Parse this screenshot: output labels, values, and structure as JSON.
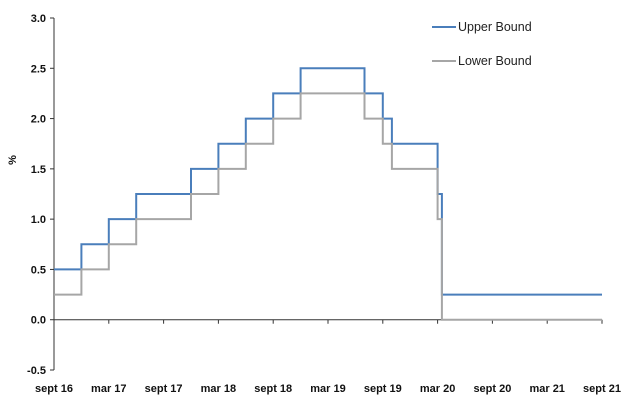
{
  "chart_data": {
    "type": "line",
    "title": "",
    "xlabel": "",
    "ylabel": "%",
    "ylim": [
      -0.5,
      3.0
    ],
    "yticks": [
      -0.5,
      0.0,
      0.5,
      1.0,
      1.5,
      2.0,
      2.5,
      3.0
    ],
    "ytick_labels": [
      "-0.5",
      "0.0",
      "0.5",
      "1.0",
      "1.5",
      "2.0",
      "2.5",
      "3.0"
    ],
    "xlim": [
      "2016-09",
      "2021-09"
    ],
    "xticks": [
      "2016-09",
      "2017-03",
      "2017-09",
      "2018-03",
      "2018-09",
      "2019-03",
      "2019-09",
      "2020-03",
      "2020-09",
      "2021-03",
      "2021-09"
    ],
    "xtick_labels": [
      "sept 16",
      "mar 17",
      "sept 17",
      "mar 18",
      "sept 18",
      "mar 19",
      "sept 19",
      "mar 20",
      "sept 20",
      "mar 21",
      "sept 21"
    ],
    "grid": false,
    "legend_position": "top-right",
    "step": true,
    "series": [
      {
        "name": "Upper Bound",
        "color": "#4a7ebb",
        "points": [
          [
            "2016-09",
            0.5
          ],
          [
            "2016-12",
            0.75
          ],
          [
            "2017-03",
            1.0
          ],
          [
            "2017-06",
            1.25
          ],
          [
            "2017-12",
            1.5
          ],
          [
            "2018-03",
            1.75
          ],
          [
            "2018-06",
            2.0
          ],
          [
            "2018-09",
            2.25
          ],
          [
            "2018-12",
            2.5
          ],
          [
            "2019-07",
            2.25
          ],
          [
            "2019-09",
            2.0
          ],
          [
            "2019-10",
            1.75
          ],
          [
            "2020-03",
            1.25
          ],
          [
            "2020-03-15",
            0.25
          ],
          [
            "2021-09",
            0.25
          ]
        ]
      },
      {
        "name": "Lower Bound",
        "color": "#a6a6a6",
        "points": [
          [
            "2016-09",
            0.25
          ],
          [
            "2016-12",
            0.5
          ],
          [
            "2017-03",
            0.75
          ],
          [
            "2017-06",
            1.0
          ],
          [
            "2017-12",
            1.25
          ],
          [
            "2018-03",
            1.5
          ],
          [
            "2018-06",
            1.75
          ],
          [
            "2018-09",
            2.0
          ],
          [
            "2018-12",
            2.25
          ],
          [
            "2019-07",
            2.0
          ],
          [
            "2019-09",
            1.75
          ],
          [
            "2019-10",
            1.5
          ],
          [
            "2020-03",
            1.0
          ],
          [
            "2020-03-15",
            0.0
          ],
          [
            "2021-09",
            0.0
          ]
        ]
      }
    ]
  }
}
